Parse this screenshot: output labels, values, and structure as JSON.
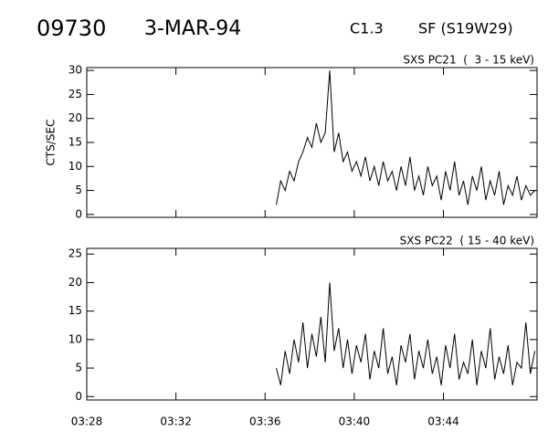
{
  "header": {
    "id": "09730",
    "date": "3-MAR-94",
    "class": "C1.3",
    "location": "SF (S19W29)"
  },
  "chart_data": [
    {
      "type": "line",
      "title": "SXS PC21  (  3 - 15 keV)",
      "ylabel": "CTS/SEC",
      "color": "#000000",
      "xlim": [
        208,
        228.2
      ],
      "ylim": [
        -0.6,
        30.6
      ],
      "yticks": [
        0,
        5,
        10,
        15,
        20,
        25,
        30
      ],
      "x": [
        216.5,
        216.7,
        216.9,
        217.1,
        217.3,
        217.5,
        217.7,
        217.9,
        218.1,
        218.3,
        218.5,
        218.7,
        218.9,
        219.1,
        219.3,
        219.5,
        219.7,
        219.9,
        220.1,
        220.3,
        220.5,
        220.7,
        220.9,
        221.1,
        221.3,
        221.5,
        221.7,
        221.9,
        222.1,
        222.3,
        222.5,
        222.7,
        222.9,
        223.1,
        223.3,
        223.5,
        223.7,
        223.9,
        224.1,
        224.3,
        224.5,
        224.7,
        224.9,
        225.1,
        225.3,
        225.5,
        225.7,
        225.9,
        226.1,
        226.3,
        226.5,
        226.7,
        226.9,
        227.1,
        227.3,
        227.5,
        227.7,
        227.9,
        228.1
      ],
      "values": [
        2,
        7,
        5,
        9,
        7,
        11,
        13,
        16,
        14,
        19,
        15,
        17,
        30,
        13,
        17,
        11,
        13,
        9,
        11,
        8,
        12,
        7,
        10,
        6,
        11,
        7,
        9,
        5,
        10,
        6,
        12,
        5,
        8,
        4,
        10,
        6,
        8,
        3,
        9,
        5,
        11,
        4,
        7,
        2,
        8,
        5,
        10,
        3,
        7,
        4,
        9,
        2,
        6,
        4,
        8,
        3,
        6,
        4,
        5
      ]
    },
    {
      "type": "line",
      "title": "SXS PC22  ( 15 - 40 keV)",
      "color": "#000000",
      "xlim": [
        208,
        228.2
      ],
      "ylim": [
        -0.6,
        26
      ],
      "yticks": [
        0,
        5,
        10,
        15,
        20,
        25
      ],
      "xticks": [
        {
          "value": 208,
          "label": "03:28"
        },
        {
          "value": 212,
          "label": "03:32"
        },
        {
          "value": 216,
          "label": "03:36"
        },
        {
          "value": 220,
          "label": "03:40"
        },
        {
          "value": 224,
          "label": "03:44"
        }
      ],
      "x": [
        216.5,
        216.7,
        216.9,
        217.1,
        217.3,
        217.5,
        217.7,
        217.9,
        218.1,
        218.3,
        218.5,
        218.7,
        218.9,
        219.1,
        219.3,
        219.5,
        219.7,
        219.9,
        220.1,
        220.3,
        220.5,
        220.7,
        220.9,
        221.1,
        221.3,
        221.5,
        221.7,
        221.9,
        222.1,
        222.3,
        222.5,
        222.7,
        222.9,
        223.1,
        223.3,
        223.5,
        223.7,
        223.9,
        224.1,
        224.3,
        224.5,
        224.7,
        224.9,
        225.1,
        225.3,
        225.5,
        225.7,
        225.9,
        226.1,
        226.3,
        226.5,
        226.7,
        226.9,
        227.1,
        227.3,
        227.5,
        227.7,
        227.9,
        228.1
      ],
      "values": [
        5,
        2,
        8,
        4,
        10,
        6,
        13,
        5,
        11,
        7,
        14,
        6,
        20,
        8,
        12,
        5,
        10,
        4,
        9,
        6,
        11,
        3,
        8,
        5,
        12,
        4,
        7,
        2,
        9,
        6,
        11,
        3,
        8,
        5,
        10,
        4,
        7,
        2,
        9,
        5,
        11,
        3,
        6,
        4,
        10,
        2,
        8,
        5,
        12,
        3,
        7,
        4,
        9,
        2,
        6,
        5,
        13,
        4,
        8
      ]
    }
  ]
}
